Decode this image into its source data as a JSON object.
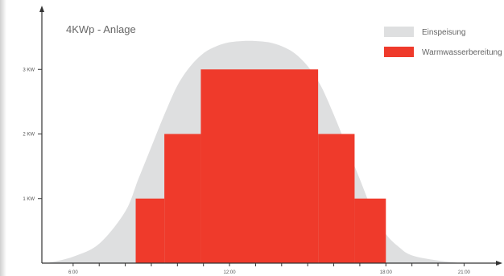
{
  "chart_data": {
    "type": "area",
    "title": "4KWp - Anlage",
    "xlabel": "",
    "ylabel": "",
    "x_unit": "hours",
    "xlim": [
      4.8,
      22.1
    ],
    "ylim": [
      0,
      4.0
    ],
    "y_ticks": [
      {
        "value": 1,
        "label": "1 KW"
      },
      {
        "value": 2,
        "label": "2 KW"
      },
      {
        "value": 3,
        "label": "3 KW"
      }
    ],
    "x_ticks": [
      {
        "value": 6,
        "label": "6:00"
      },
      {
        "value": 12,
        "label": "12:00"
      },
      {
        "value": 18,
        "label": "18:00"
      },
      {
        "value": 21,
        "label": "21:00"
      }
    ],
    "x_minor_ticks": [
      6,
      7,
      8,
      9,
      10,
      11,
      12,
      13,
      14,
      15,
      16,
      17,
      18,
      19,
      20,
      21
    ],
    "legend_position": "top-right",
    "series": [
      {
        "name": "Einspeisung",
        "kind": "area",
        "color": "#dedfe0",
        "x": [
          5.0,
          6.0,
          7.0,
          8.0,
          8.5,
          9.0,
          9.5,
          10.0,
          10.5,
          11.0,
          11.5,
          12.0,
          12.5,
          13.0,
          13.5,
          14.0,
          14.5,
          15.0,
          15.5,
          16.0,
          16.5,
          17.0,
          17.5,
          18.0,
          18.5,
          19.0,
          20.0,
          21.0,
          22.0
        ],
        "values": [
          0.0,
          0.1,
          0.3,
          0.8,
          1.3,
          1.8,
          2.3,
          2.75,
          3.05,
          3.25,
          3.36,
          3.42,
          3.44,
          3.44,
          3.42,
          3.36,
          3.25,
          3.05,
          2.75,
          2.3,
          1.8,
          1.3,
          0.8,
          0.45,
          0.25,
          0.12,
          0.04,
          0.0,
          0.0
        ]
      },
      {
        "name": "Warmwasserbereitung",
        "kind": "step",
        "color": "#ef3a2b",
        "steps": [
          {
            "x0": 8.4,
            "x1": 9.5,
            "value": 1
          },
          {
            "x0": 9.5,
            "x1": 10.9,
            "value": 2
          },
          {
            "x0": 10.9,
            "x1": 15.4,
            "value": 3
          },
          {
            "x0": 15.4,
            "x1": 16.8,
            "value": 2
          },
          {
            "x0": 16.8,
            "x1": 18.0,
            "value": 1
          }
        ]
      }
    ]
  }
}
